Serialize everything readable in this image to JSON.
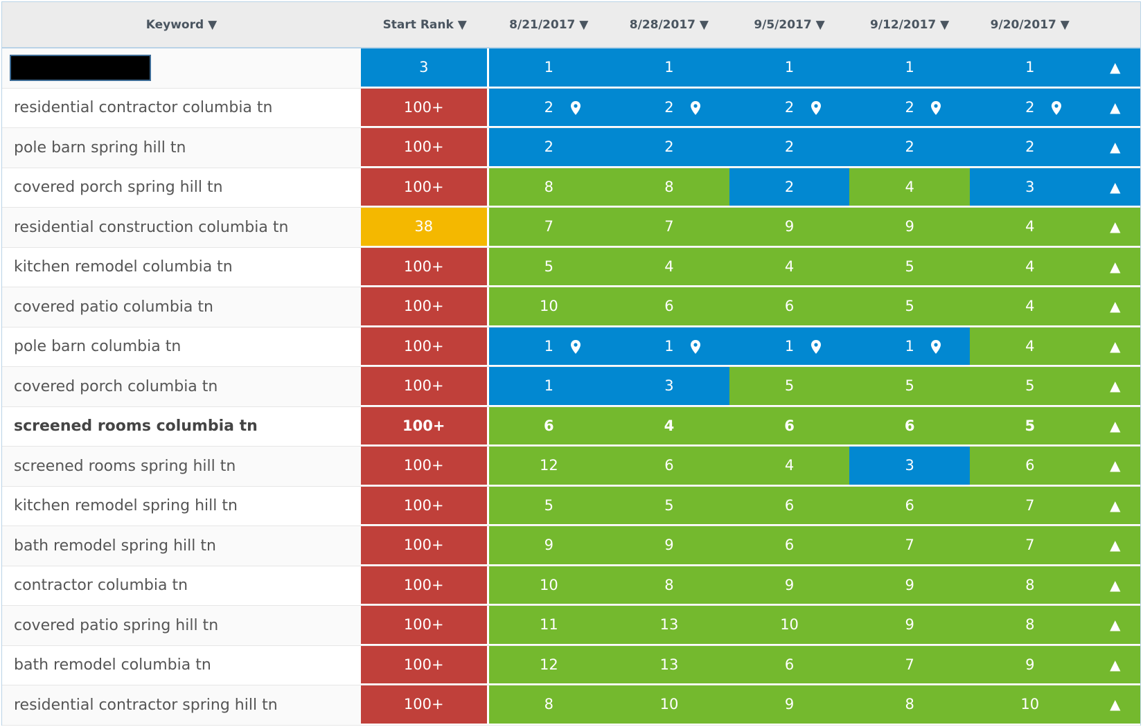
{
  "headers": [
    "Keyword ▼",
    "Start Rank ▼",
    "8/21/2017 ▼",
    "8/28/2017 ▼",
    "9/5/2017 ▼",
    "9/12/2017 ▼",
    "9/20/2017 ▼"
  ],
  "colors": {
    "blue": "#0288d1",
    "red": "#c0403a",
    "green": "#74b92e",
    "yellow": "#f4b800"
  },
  "trend_icon": "▲",
  "rows": [
    {
      "keyword": "",
      "redacted": true,
      "start": "3",
      "sc": "blue",
      "ranks": [
        "1",
        "1",
        "1",
        "1",
        "1"
      ],
      "rc": [
        "blue",
        "blue",
        "blue",
        "blue",
        "blue"
      ],
      "pins": [
        0,
        0,
        0,
        0,
        0
      ],
      "ac": "blue"
    },
    {
      "keyword": "residential contractor columbia tn",
      "start": "100+",
      "sc": "red",
      "ranks": [
        "2",
        "2",
        "2",
        "2",
        "2"
      ],
      "rc": [
        "blue",
        "blue",
        "blue",
        "blue",
        "blue"
      ],
      "pins": [
        1,
        1,
        1,
        1,
        1
      ],
      "ac": "blue"
    },
    {
      "keyword": "pole barn spring hill tn",
      "start": "100+",
      "sc": "red",
      "ranks": [
        "2",
        "2",
        "2",
        "2",
        "2"
      ],
      "rc": [
        "blue",
        "blue",
        "blue",
        "blue",
        "blue"
      ],
      "pins": [
        0,
        0,
        0,
        0,
        0
      ],
      "ac": "blue"
    },
    {
      "keyword": "covered porch spring hill tn",
      "start": "100+",
      "sc": "red",
      "ranks": [
        "8",
        "8",
        "2",
        "4",
        "3"
      ],
      "rc": [
        "green",
        "green",
        "blue",
        "green",
        "blue"
      ],
      "pins": [
        0,
        0,
        0,
        0,
        0
      ],
      "ac": "blue"
    },
    {
      "keyword": "residential construction columbia tn",
      "start": "38",
      "sc": "yellow",
      "ranks": [
        "7",
        "7",
        "9",
        "9",
        "4"
      ],
      "rc": [
        "green",
        "green",
        "green",
        "green",
        "green"
      ],
      "pins": [
        0,
        0,
        0,
        0,
        0
      ],
      "ac": "green"
    },
    {
      "keyword": "kitchen remodel columbia tn",
      "start": "100+",
      "sc": "red",
      "ranks": [
        "5",
        "4",
        "4",
        "5",
        "4"
      ],
      "rc": [
        "green",
        "green",
        "green",
        "green",
        "green"
      ],
      "pins": [
        0,
        0,
        0,
        0,
        0
      ],
      "ac": "green"
    },
    {
      "keyword": "covered patio columbia tn",
      "start": "100+",
      "sc": "red",
      "ranks": [
        "10",
        "6",
        "6",
        "5",
        "4"
      ],
      "rc": [
        "green",
        "green",
        "green",
        "green",
        "green"
      ],
      "pins": [
        0,
        0,
        0,
        0,
        0
      ],
      "ac": "green"
    },
    {
      "keyword": "pole barn columbia tn",
      "start": "100+",
      "sc": "red",
      "ranks": [
        "1",
        "1",
        "1",
        "1",
        "4"
      ],
      "rc": [
        "blue",
        "blue",
        "blue",
        "blue",
        "green"
      ],
      "pins": [
        1,
        1,
        1,
        1,
        0
      ],
      "ac": "green"
    },
    {
      "keyword": "covered porch columbia tn",
      "start": "100+",
      "sc": "red",
      "ranks": [
        "1",
        "3",
        "5",
        "5",
        "5"
      ],
      "rc": [
        "blue",
        "blue",
        "green",
        "green",
        "green"
      ],
      "pins": [
        0,
        0,
        0,
        0,
        0
      ],
      "ac": "green"
    },
    {
      "keyword": "screened rooms columbia tn",
      "bold": true,
      "start": "100+",
      "sc": "red",
      "ranks": [
        "6",
        "4",
        "6",
        "6",
        "5"
      ],
      "rc": [
        "green",
        "green",
        "green",
        "green",
        "green"
      ],
      "pins": [
        0,
        0,
        0,
        0,
        0
      ],
      "ac": "green"
    },
    {
      "keyword": "screened rooms spring hill tn",
      "start": "100+",
      "sc": "red",
      "ranks": [
        "12",
        "6",
        "4",
        "3",
        "6"
      ],
      "rc": [
        "green",
        "green",
        "green",
        "blue",
        "green"
      ],
      "pins": [
        0,
        0,
        0,
        0,
        0
      ],
      "ac": "green"
    },
    {
      "keyword": "kitchen remodel spring hill tn",
      "start": "100+",
      "sc": "red",
      "ranks": [
        "5",
        "5",
        "6",
        "6",
        "7"
      ],
      "rc": [
        "green",
        "green",
        "green",
        "green",
        "green"
      ],
      "pins": [
        0,
        0,
        0,
        0,
        0
      ],
      "ac": "green"
    },
    {
      "keyword": "bath remodel spring hill tn",
      "start": "100+",
      "sc": "red",
      "ranks": [
        "9",
        "9",
        "6",
        "7",
        "7"
      ],
      "rc": [
        "green",
        "green",
        "green",
        "green",
        "green"
      ],
      "pins": [
        0,
        0,
        0,
        0,
        0
      ],
      "ac": "green"
    },
    {
      "keyword": "contractor columbia tn",
      "start": "100+",
      "sc": "red",
      "ranks": [
        "10",
        "8",
        "9",
        "9",
        "8"
      ],
      "rc": [
        "green",
        "green",
        "green",
        "green",
        "green"
      ],
      "pins": [
        0,
        0,
        0,
        0,
        0
      ],
      "ac": "green"
    },
    {
      "keyword": "covered patio spring hill tn",
      "start": "100+",
      "sc": "red",
      "ranks": [
        "11",
        "13",
        "10",
        "9",
        "8"
      ],
      "rc": [
        "green",
        "green",
        "green",
        "green",
        "green"
      ],
      "pins": [
        0,
        0,
        0,
        0,
        0
      ],
      "ac": "green"
    },
    {
      "keyword": "bath remodel columbia tn",
      "start": "100+",
      "sc": "red",
      "ranks": [
        "12",
        "13",
        "6",
        "7",
        "9"
      ],
      "rc": [
        "green",
        "green",
        "green",
        "green",
        "green"
      ],
      "pins": [
        0,
        0,
        0,
        0,
        0
      ],
      "ac": "green"
    },
    {
      "keyword": "residential contractor spring hill tn",
      "start": "100+",
      "sc": "red",
      "ranks": [
        "8",
        "10",
        "9",
        "8",
        "10"
      ],
      "rc": [
        "green",
        "green",
        "green",
        "green",
        "green"
      ],
      "pins": [
        0,
        0,
        0,
        0,
        0
      ],
      "ac": "green"
    }
  ]
}
